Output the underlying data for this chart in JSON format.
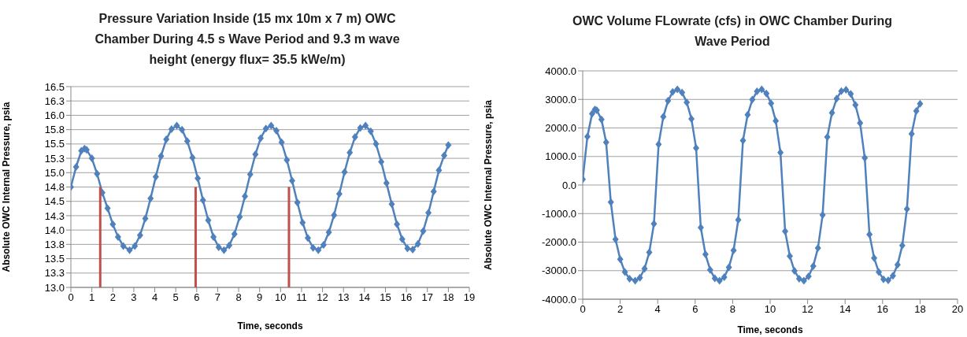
{
  "chart_data": [
    {
      "type": "line",
      "title": "Pressure Variation Inside (15 mx 10m x 7 m) OWC Chamber During 4.5 s Wave Period and 9.3 m wave height (energy flux= 35.5 kWe/m)",
      "xlabel": "Time, seconds",
      "ylabel": "Absolute OWC Internal Pressure, psia",
      "xlim": [
        0,
        19
      ],
      "xticks": [
        0,
        1,
        2,
        3,
        4,
        5,
        6,
        7,
        8,
        9,
        10,
        11,
        12,
        13,
        14,
        15,
        16,
        17,
        18,
        19
      ],
      "ylim": [
        13,
        16.5
      ],
      "yticks": [
        {
          "value": 13,
          "label": "13.0"
        },
        {
          "value": 13.25,
          "label": "13.3"
        },
        {
          "value": 13.5,
          "label": "13.5"
        },
        {
          "value": 13.75,
          "label": "13.8"
        },
        {
          "value": 14,
          "label": "14.0"
        },
        {
          "value": 14.25,
          "label": "14.3"
        },
        {
          "value": 14.5,
          "label": "14.5"
        },
        {
          "value": 14.75,
          "label": "14.8"
        },
        {
          "value": 15,
          "label": "15.0"
        },
        {
          "value": 15.25,
          "label": "15.3"
        },
        {
          "value": 15.5,
          "label": "15.5"
        },
        {
          "value": 15.75,
          "label": "15.8"
        },
        {
          "value": 16,
          "label": "16.0"
        },
        {
          "value": 16.25,
          "label": "16.3"
        },
        {
          "value": 16.5,
          "label": "16.5"
        }
      ],
      "grid": "y",
      "marker": "diamond",
      "series": [
        {
          "color": "#4f81bd",
          "x": [
            0,
            0.25,
            0.5,
            0.65,
            0.75,
            1,
            1.25,
            1.5,
            1.75,
            2,
            2.25,
            2.5,
            2.8,
            3.05,
            3.3,
            3.55,
            3.8,
            4.05,
            4.3,
            4.55,
            4.8,
            5.05,
            5.3,
            5.55,
            5.8,
            6.05,
            6.3,
            6.55,
            6.8,
            7.05,
            7.3,
            7.55,
            7.8,
            8.05,
            8.3,
            8.55,
            8.8,
            9.05,
            9.3,
            9.55,
            9.8,
            10.05,
            10.3,
            10.55,
            10.8,
            11.05,
            11.3,
            11.55,
            11.8,
            12.05,
            12.3,
            12.55,
            12.8,
            13.05,
            13.3,
            13.55,
            13.8,
            14.05,
            14.3,
            14.55,
            14.8,
            15.05,
            15.3,
            15.55,
            15.8,
            16.05,
            16.3,
            16.55,
            16.8,
            17.05,
            17.3,
            17.55,
            17.8,
            18
          ],
          "values": [
            14.75,
            15.1,
            15.38,
            15.42,
            15.4,
            15.25,
            14.98,
            14.65,
            14.38,
            14.1,
            13.88,
            13.72,
            13.65,
            13.72,
            13.91,
            14.2,
            14.55,
            14.93,
            15.29,
            15.58,
            15.76,
            15.82,
            15.75,
            15.55,
            15.26,
            14.9,
            14.52,
            14.17,
            13.88,
            13.7,
            13.65,
            13.73,
            13.93,
            14.23,
            14.59,
            14.97,
            15.32,
            15.6,
            15.77,
            15.82,
            15.73,
            15.53,
            15.22,
            14.86,
            14.48,
            14.13,
            13.86,
            13.69,
            13.65,
            13.74,
            13.96,
            14.26,
            14.63,
            15.01,
            15.35,
            15.62,
            15.78,
            15.82,
            15.72,
            15.5,
            15.19,
            14.82,
            14.45,
            14.1,
            13.84,
            13.68,
            13.66,
            13.76,
            13.98,
            14.3,
            14.67,
            15.04,
            15.3,
            15.48
          ]
        },
        {
          "type": "bar",
          "color": "#c0504d",
          "x": [
            1.4,
            5.95,
            10.4
          ],
          "values": [
            14.75,
            14.75,
            14.75
          ]
        }
      ]
    },
    {
      "type": "line",
      "title": "OWC Volume FLowrate (cfs) in OWC Chamber During Wave Period",
      "xlabel": "Time, seconds",
      "ylabel": "Absolute OWC Internal Pressure, psia",
      "xlim": [
        0,
        20
      ],
      "xticks": [
        0,
        2,
        4,
        6,
        8,
        10,
        12,
        14,
        16,
        18,
        20
      ],
      "ylim": [
        -4000,
        4000
      ],
      "yticks": [
        {
          "value": -4000,
          "label": "-4000.0"
        },
        {
          "value": -3000,
          "label": "-3000.0"
        },
        {
          "value": -2000,
          "label": "-2000.0"
        },
        {
          "value": -1000,
          "label": "-1000.0"
        },
        {
          "value": 0,
          "label": "0.0"
        },
        {
          "value": 1000,
          "label": "1000.0"
        },
        {
          "value": 2000,
          "label": "2000.0"
        },
        {
          "value": 3000,
          "label": "3000.0"
        },
        {
          "value": 4000,
          "label": "4000.0"
        }
      ],
      "grid": "y",
      "marker": "diamond",
      "series": [
        {
          "color": "#4f81bd",
          "x": [
            0,
            0.25,
            0.5,
            0.65,
            0.75,
            1,
            1.25,
            1.5,
            1.75,
            2,
            2.25,
            2.5,
            2.8,
            3.05,
            3.3,
            3.55,
            3.8,
            4.05,
            4.3,
            4.55,
            4.8,
            5.05,
            5.3,
            5.55,
            5.8,
            6.05,
            6.3,
            6.55,
            6.8,
            7.05,
            7.3,
            7.55,
            7.8,
            8.05,
            8.3,
            8.55,
            8.8,
            9.05,
            9.3,
            9.55,
            9.8,
            10.05,
            10.3,
            10.55,
            10.8,
            11.05,
            11.3,
            11.55,
            11.8,
            12.05,
            12.3,
            12.55,
            12.8,
            13.05,
            13.3,
            13.55,
            13.8,
            14.05,
            14.3,
            14.55,
            14.8,
            15.05,
            15.3,
            15.55,
            15.8,
            16.05,
            16.3,
            16.55,
            16.8,
            17.05,
            17.3,
            17.55,
            17.8,
            18
          ],
          "values": [
            200,
            1700,
            2500,
            2650,
            2620,
            2300,
            1500,
            -600,
            -1900,
            -2600,
            -3050,
            -3280,
            -3350,
            -3250,
            -2930,
            -2360,
            -1360,
            1430,
            2390,
            2950,
            3260,
            3350,
            3240,
            2900,
            2320,
            1300,
            -1490,
            -2430,
            -2970,
            -3270,
            -3350,
            -3230,
            -2880,
            -2290,
            -1220,
            1560,
            2460,
            2990,
            3280,
            3350,
            3210,
            2860,
            2250,
            1140,
            -1620,
            -2490,
            -3010,
            -3280,
            -3350,
            -3200,
            -2840,
            -2210,
            -1050,
            1680,
            2530,
            3030,
            3290,
            3340,
            3190,
            2810,
            2170,
            950,
            -1730,
            -2560,
            -3050,
            -3300,
            -3340,
            -3180,
            -2790,
            -2120,
            -840,
            1790,
            2590,
            2850
          ]
        }
      ]
    }
  ]
}
